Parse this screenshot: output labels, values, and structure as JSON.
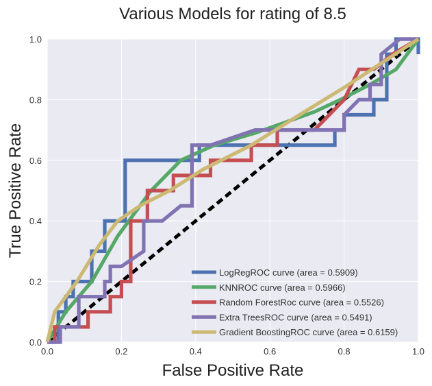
{
  "chart_data": {
    "type": "line",
    "title": "Various Models for rating of 8.5",
    "xlabel": "False Positive Rate",
    "ylabel": "True Positive Rate",
    "xlim": [
      0.0,
      1.0
    ],
    "ylim": [
      0.0,
      1.0
    ],
    "xticks": [
      "0.0",
      "0.2",
      "0.4",
      "0.6",
      "0.8",
      "1.0"
    ],
    "yticks": [
      "0.0",
      "0.2",
      "0.4",
      "0.6",
      "0.8",
      "1.0"
    ],
    "grid": true,
    "legend_position": "bottom-right",
    "colors": {
      "plot_background": "#EAEAF2",
      "grid": "#FFFFFF",
      "diagonal": "#000000"
    },
    "diagonal": {
      "x": [
        0,
        1
      ],
      "y": [
        0,
        1
      ],
      "style": "dashed"
    },
    "series": [
      {
        "name": "LogRegROC curve (area = 0.5909)",
        "color": "#4C72B0",
        "x": [
          0,
          0.03,
          0.03,
          0.05,
          0.05,
          0.07,
          0.07,
          0.12,
          0.12,
          0.155,
          0.155,
          0.21,
          0.21,
          0.41,
          0.41,
          0.56,
          0.56,
          0.775,
          0.775,
          0.8,
          0.8,
          0.88,
          0.88,
          0.915,
          0.915,
          0.94,
          0.94,
          1.0,
          1.0
        ],
        "y": [
          0,
          0,
          0.1,
          0.1,
          0.15,
          0.15,
          0.2,
          0.2,
          0.3,
          0.3,
          0.4,
          0.4,
          0.6,
          0.6,
          0.65,
          0.65,
          0.65,
          0.65,
          0.7,
          0.7,
          0.75,
          0.75,
          0.8,
          0.8,
          0.95,
          0.95,
          1.0,
          1.0,
          0.95
        ]
      },
      {
        "name": "KNNROC curve (area = 0.5966)",
        "color": "#55A868",
        "x": [
          0,
          0.05,
          0.12,
          0.19,
          0.28,
          0.36,
          0.45,
          0.56,
          0.63,
          0.72,
          0.79,
          0.87,
          0.94,
          1.0
        ],
        "y": [
          0,
          0.1,
          0.2,
          0.35,
          0.5,
          0.6,
          0.65,
          0.69,
          0.72,
          0.76,
          0.8,
          0.85,
          0.9,
          1.0
        ]
      },
      {
        "name": "Random ForestRoc curve (area = 0.5526)",
        "color": "#C44E52",
        "x": [
          0,
          0.02,
          0.02,
          0.06,
          0.06,
          0.11,
          0.11,
          0.17,
          0.17,
          0.2,
          0.2,
          0.225,
          0.225,
          0.27,
          0.27,
          0.34,
          0.34,
          0.39,
          0.39,
          0.44,
          0.44,
          0.55,
          0.55,
          0.62,
          0.62,
          0.72,
          0.76,
          0.8,
          0.84,
          0.88,
          0.93,
          1.0
        ],
        "y": [
          0,
          0,
          0.05,
          0.05,
          0.05,
          0.05,
          0.1,
          0.1,
          0.15,
          0.15,
          0.2,
          0.2,
          0.4,
          0.4,
          0.5,
          0.5,
          0.55,
          0.55,
          0.55,
          0.55,
          0.6,
          0.6,
          0.65,
          0.65,
          0.7,
          0.7,
          0.75,
          0.8,
          0.9,
          0.9,
          0.95,
          1.0
        ]
      },
      {
        "name": "Extra TreesROC curve (area = 0.5491)",
        "color": "#8172B2",
        "x": [
          0,
          0.035,
          0.035,
          0.085,
          0.085,
          0.155,
          0.155,
          0.17,
          0.17,
          0.2,
          0.26,
          0.26,
          0.31,
          0.36,
          0.39,
          0.39,
          0.44,
          0.56,
          0.77,
          0.77,
          0.8,
          0.8,
          0.84,
          0.87,
          0.87,
          0.9,
          0.9,
          0.95,
          1.0
        ],
        "y": [
          0,
          0,
          0.05,
          0.05,
          0.15,
          0.15,
          0.2,
          0.2,
          0.25,
          0.25,
          0.3,
          0.4,
          0.4,
          0.45,
          0.45,
          0.65,
          0.65,
          0.7,
          0.7,
          0.7,
          0.7,
          0.75,
          0.8,
          0.8,
          0.85,
          0.85,
          0.95,
          1.0,
          1.0
        ]
      },
      {
        "name": "Gradient BoostingROC curve (area = 0.6159)",
        "color": "#CCB974",
        "x": [
          0,
          0.02,
          0.08,
          0.14,
          0.19,
          0.25,
          0.33,
          0.42,
          0.55,
          0.68,
          0.8,
          0.9,
          1.0
        ],
        "y": [
          0,
          0.1,
          0.2,
          0.32,
          0.4,
          0.45,
          0.5,
          0.57,
          0.65,
          0.75,
          0.84,
          0.92,
          1.0
        ]
      }
    ]
  }
}
